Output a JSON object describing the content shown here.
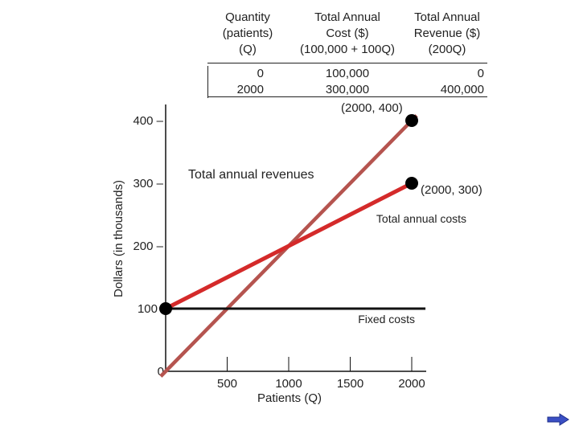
{
  "table": {
    "col_q": {
      "header": [
        "Quantity",
        "(patients)",
        "(Q)"
      ],
      "values": [
        "0",
        "2000"
      ]
    },
    "col_cost": {
      "header": [
        "Total Annual",
        "Cost ($)",
        "(100,000 + 100Q)"
      ],
      "values": [
        "100,000",
        "300,000"
      ]
    },
    "col_rev": {
      "header": [
        "Total Annual",
        "Revenue ($)",
        "(200Q)"
      ],
      "values": [
        "0",
        "400,000"
      ]
    }
  },
  "chart_data": {
    "type": "line",
    "xlabel": "Patients (Q)",
    "ylabel": "Dollars (in thousands)",
    "xlim": [
      0,
      2000
    ],
    "ylim": [
      0,
      400
    ],
    "x_ticks": [
      500,
      1000,
      1500,
      2000
    ],
    "y_ticks": [
      0,
      100,
      200,
      300,
      400
    ],
    "x_tick_labels": [
      "500",
      "1000",
      "1500",
      "2000"
    ],
    "y_tick_labels": [
      "0",
      "100",
      "200 –",
      "300 –",
      "400 –"
    ],
    "series": [
      {
        "name": "Total annual revenues",
        "x": [
          0,
          2000
        ],
        "y": [
          0,
          400
        ],
        "color": "#b5544f"
      },
      {
        "name": "Total annual costs",
        "x": [
          0,
          2000
        ],
        "y": [
          100,
          300
        ],
        "color": "#d42a2a"
      },
      {
        "name": "Fixed costs",
        "x": [
          0,
          2000
        ],
        "y": [
          100,
          100
        ],
        "color": "#111111"
      }
    ],
    "points": [
      {
        "x": 0,
        "y": 100,
        "label": ""
      },
      {
        "x": 2000,
        "y": 400,
        "label": "(2000, 400)"
      },
      {
        "x": 2000,
        "y": 300,
        "label": "(2000, 300)"
      }
    ]
  },
  "nav": {
    "arrow_color": "#3a4fc4"
  }
}
